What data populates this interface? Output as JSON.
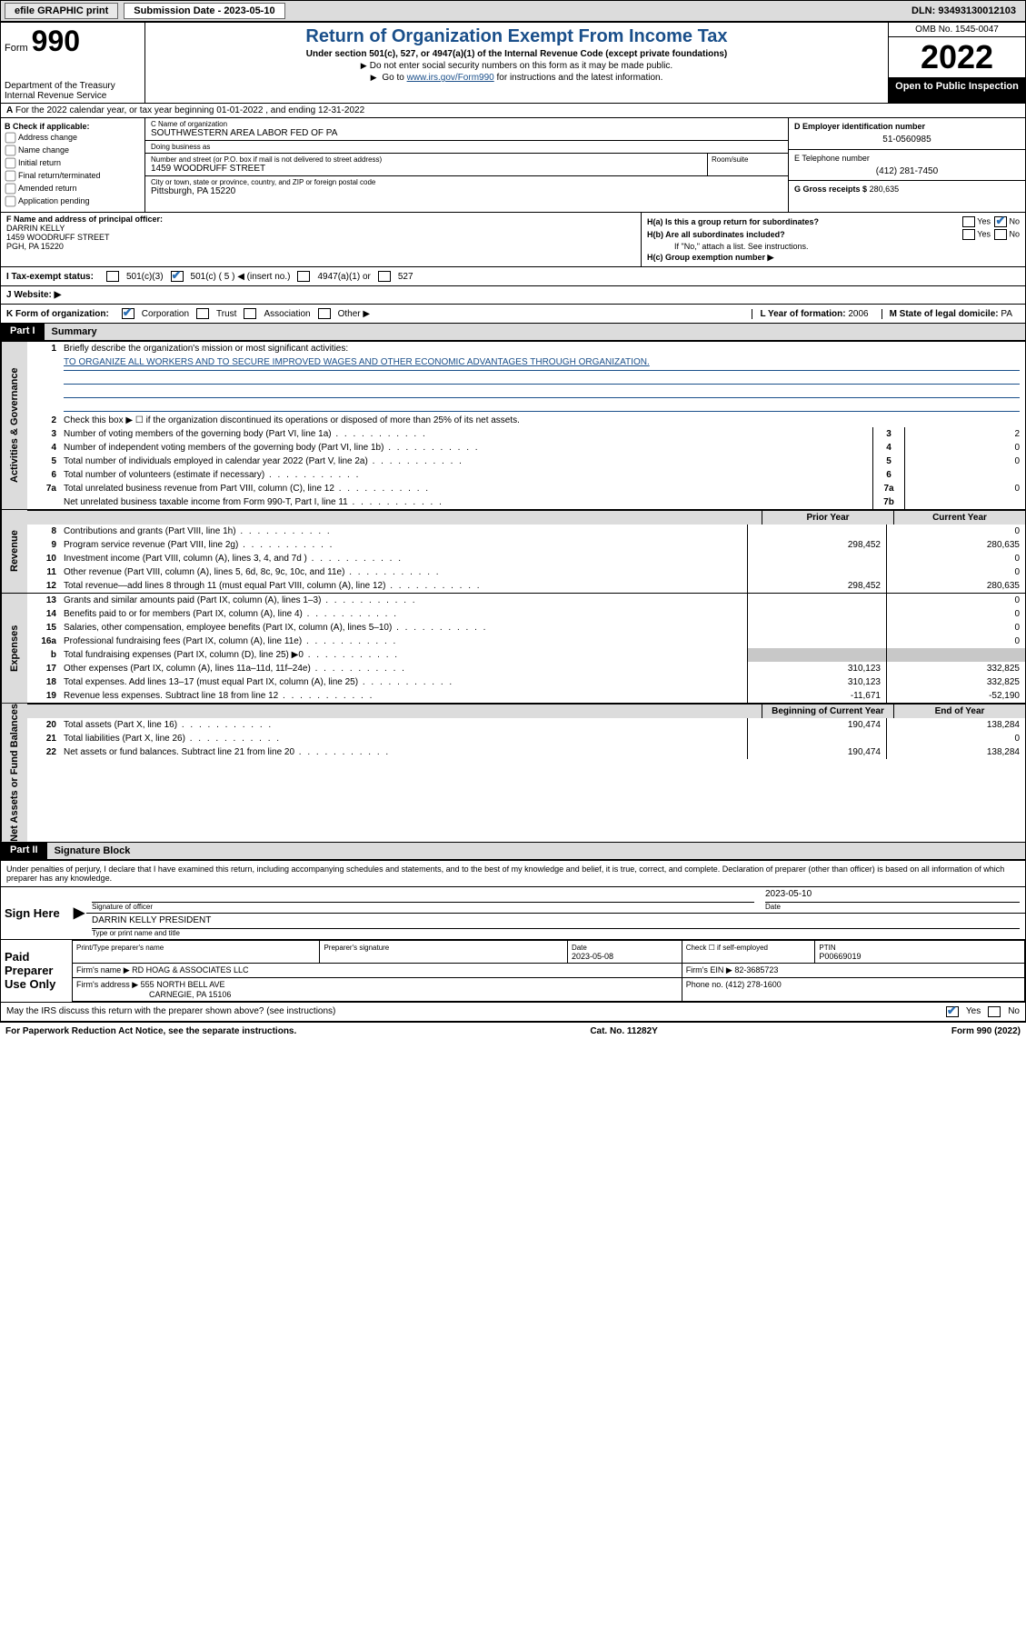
{
  "colors": {
    "link_blue": "#1a4f8a",
    "gray_bg": "#dcdcdc",
    "shade": "#c8c8c8",
    "black": "#000000",
    "white": "#ffffff"
  },
  "topbar": {
    "efile": "efile GRAPHIC print",
    "submission_label": "Submission Date - 2023-05-10",
    "dln": "DLN: 93493130012103"
  },
  "header": {
    "form_word": "Form",
    "form_num": "990",
    "dept": "Department of the Treasury\nInternal Revenue Service",
    "title": "Return of Organization Exempt From Income Tax",
    "sub1": "Under section 501(c), 527, or 4947(a)(1) of the Internal Revenue Code (except private foundations)",
    "sub2": "Do not enter social security numbers on this form as it may be made public.",
    "sub3_pre": "Go to ",
    "sub3_link": "www.irs.gov/Form990",
    "sub3_post": " for instructions and the latest information.",
    "omb": "OMB No. 1545-0047",
    "year": "2022",
    "open_pub": "Open to Public Inspection"
  },
  "rowA": "For the 2022 calendar year, or tax year beginning 01-01-2022   , and ending 12-31-2022",
  "boxB": {
    "label": "B Check if applicable:",
    "items": [
      "Address change",
      "Name change",
      "Initial return",
      "Final return/terminated",
      "Amended return",
      "Application pending"
    ]
  },
  "boxC": {
    "name_lbl": "C Name of organization",
    "name": "SOUTHWESTERN AREA LABOR FED OF PA",
    "dba_lbl": "Doing business as",
    "dba": "",
    "street_lbl": "Number and street (or P.O. box if mail is not delivered to street address)",
    "street": "1459 WOODRUFF STREET",
    "room_lbl": "Room/suite",
    "room": "",
    "city_lbl": "City or town, state or province, country, and ZIP or foreign postal code",
    "city": "Pittsburgh, PA  15220"
  },
  "boxD": {
    "lbl": "D Employer identification number",
    "val": "51-0560985"
  },
  "boxE": {
    "lbl": "E Telephone number",
    "val": "(412) 281-7450"
  },
  "boxG": {
    "lbl": "G Gross receipts $",
    "val": "280,635"
  },
  "boxF": {
    "lbl": "F Name and address of principal officer:",
    "name": "DARRIN KELLY",
    "street": "1459 WOODRUFF STREET",
    "city": "PGH, PA  15220"
  },
  "boxH": {
    "a": "H(a)  Is this a group return for subordinates?",
    "a_yes": "Yes",
    "a_no": "No",
    "b": "H(b)  Are all subordinates included?",
    "b_yes": "Yes",
    "b_no": "No",
    "b_note": "If \"No,\" attach a list. See instructions.",
    "c": "H(c)  Group exemption number ▶"
  },
  "rowI": {
    "lbl": "I   Tax-exempt status:",
    "opt1": "501(c)(3)",
    "opt2_pre": "501(c) ( 5 ) ◀ (insert no.)",
    "opt3": "4947(a)(1) or",
    "opt4": "527"
  },
  "rowJ": {
    "lbl": "J   Website: ▶",
    "val": ""
  },
  "rowK": {
    "lbl": "K Form of organization:",
    "opts": [
      "Corporation",
      "Trust",
      "Association",
      "Other ▶"
    ],
    "L_lbl": "L Year of formation:",
    "L_val": "2006",
    "M_lbl": "M State of legal domicile:",
    "M_val": "PA"
  },
  "part1": {
    "hdr": "Part I",
    "title": "Summary",
    "line1_lbl": "Briefly describe the organization's mission or most significant activities:",
    "line1_val": "TO ORGANIZE ALL WORKERS AND TO SECURE IMPROVED WAGES AND OTHER ECONOMIC ADVANTAGES THROUGH ORGANIZATION.",
    "line2": "Check this box ▶ ☐  if the organization discontinued its operations or disposed of more than 25% of its net assets.",
    "governance_tab": "Activities & Governance",
    "revenue_tab": "Revenue",
    "expenses_tab": "Expenses",
    "net_tab": "Net Assets or Fund Balances",
    "lines_gov": [
      {
        "n": "3",
        "d": "Number of voting members of the governing body (Part VI, line 1a)",
        "box": "3",
        "v": "2"
      },
      {
        "n": "4",
        "d": "Number of independent voting members of the governing body (Part VI, line 1b)",
        "box": "4",
        "v": "0"
      },
      {
        "n": "5",
        "d": "Total number of individuals employed in calendar year 2022 (Part V, line 2a)",
        "box": "5",
        "v": "0"
      },
      {
        "n": "6",
        "d": "Total number of volunteers (estimate if necessary)",
        "box": "6",
        "v": ""
      },
      {
        "n": "7a",
        "d": "Total unrelated business revenue from Part VIII, column (C), line 12",
        "box": "7a",
        "v": "0"
      },
      {
        "n": "",
        "d": "Net unrelated business taxable income from Form 990-T, Part I, line 11",
        "box": "7b",
        "v": ""
      }
    ],
    "col_prior": "Prior Year",
    "col_curr": "Current Year",
    "lines_rev": [
      {
        "n": "8",
        "d": "Contributions and grants (Part VIII, line 1h)",
        "p": "",
        "c": "0"
      },
      {
        "n": "9",
        "d": "Program service revenue (Part VIII, line 2g)",
        "p": "298,452",
        "c": "280,635"
      },
      {
        "n": "10",
        "d": "Investment income (Part VIII, column (A), lines 3, 4, and 7d )",
        "p": "",
        "c": "0"
      },
      {
        "n": "11",
        "d": "Other revenue (Part VIII, column (A), lines 5, 6d, 8c, 9c, 10c, and 11e)",
        "p": "",
        "c": "0"
      },
      {
        "n": "12",
        "d": "Total revenue—add lines 8 through 11 (must equal Part VIII, column (A), line 12)",
        "p": "298,452",
        "c": "280,635"
      }
    ],
    "lines_exp": [
      {
        "n": "13",
        "d": "Grants and similar amounts paid (Part IX, column (A), lines 1–3)",
        "p": "",
        "c": "0"
      },
      {
        "n": "14",
        "d": "Benefits paid to or for members (Part IX, column (A), line 4)",
        "p": "",
        "c": "0"
      },
      {
        "n": "15",
        "d": "Salaries, other compensation, employee benefits (Part IX, column (A), lines 5–10)",
        "p": "",
        "c": "0"
      },
      {
        "n": "16a",
        "d": "Professional fundraising fees (Part IX, column (A), line 11e)",
        "p": "",
        "c": "0"
      },
      {
        "n": "b",
        "d": "Total fundraising expenses (Part IX, column (D), line 25) ▶0",
        "p": "—",
        "c": "—"
      },
      {
        "n": "17",
        "d": "Other expenses (Part IX, column (A), lines 11a–11d, 11f–24e)",
        "p": "310,123",
        "c": "332,825"
      },
      {
        "n": "18",
        "d": "Total expenses. Add lines 13–17 (must equal Part IX, column (A), line 25)",
        "p": "310,123",
        "c": "332,825"
      },
      {
        "n": "19",
        "d": "Revenue less expenses. Subtract line 18 from line 12",
        "p": "-11,671",
        "c": "-52,190"
      }
    ],
    "col_begin": "Beginning of Current Year",
    "col_end": "End of Year",
    "lines_net": [
      {
        "n": "20",
        "d": "Total assets (Part X, line 16)",
        "p": "190,474",
        "c": "138,284"
      },
      {
        "n": "21",
        "d": "Total liabilities (Part X, line 26)",
        "p": "",
        "c": "0"
      },
      {
        "n": "22",
        "d": "Net assets or fund balances. Subtract line 21 from line 20",
        "p": "190,474",
        "c": "138,284"
      }
    ]
  },
  "part2": {
    "hdr": "Part II",
    "title": "Signature Block",
    "penalty": "Under penalties of perjury, I declare that I have examined this return, including accompanying schedules and statements, and to the best of my knowledge and belief, it is true, correct, and complete. Declaration of preparer (other than officer) is based on all information of which preparer has any knowledge.",
    "sign_here": "Sign Here",
    "sig_officer_lbl": "Signature of officer",
    "sig_date_lbl": "Date",
    "sig_date": "2023-05-10",
    "sig_name_lbl": "Type or print name and title",
    "sig_name": "DARRIN KELLY PRESIDENT",
    "paid_prep": "Paid Preparer Use Only",
    "prep_name_lbl": "Print/Type preparer's name",
    "prep_sig_lbl": "Preparer's signature",
    "prep_date_lbl": "Date",
    "prep_date": "2023-05-08",
    "prep_check_lbl": "Check ☐ if self-employed",
    "ptin_lbl": "PTIN",
    "ptin": "P00669019",
    "firm_name_lbl": "Firm's name   ▶",
    "firm_name": "RD HOAG & ASSOCIATES LLC",
    "firm_ein_lbl": "Firm's EIN ▶",
    "firm_ein": "82-3685723",
    "firm_addr_lbl": "Firm's address ▶",
    "firm_addr1": "555 NORTH BELL AVE",
    "firm_addr2": "CARNEGIE, PA  15106",
    "phone_lbl": "Phone no.",
    "phone": "(412) 278-1600",
    "discuss": "May the IRS discuss this return with the preparer shown above? (see instructions)",
    "discuss_yes": "Yes",
    "discuss_no": "No"
  },
  "footer": {
    "left": "For Paperwork Reduction Act Notice, see the separate instructions.",
    "mid": "Cat. No. 11282Y",
    "right": "Form 990 (2022)"
  }
}
